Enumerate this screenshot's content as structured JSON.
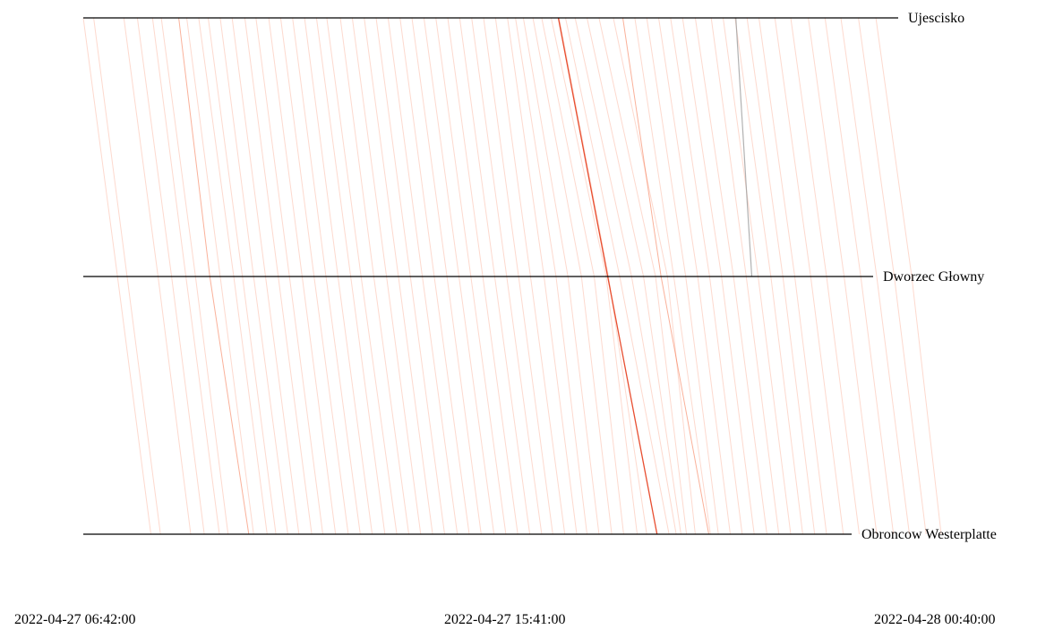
{
  "chart_data": {
    "type": "line",
    "title": "",
    "xlabel": "",
    "ylabel": "",
    "stops": [
      "Ujescisko",
      "Dworzec Głowny",
      "Obroncow Westerplatte"
    ],
    "x_tick_labels": [
      "2022-04-27 06:42:00",
      "2022-04-27 15:41:00",
      "2022-04-28 00:40:00"
    ],
    "x_range": [
      "2022-04-27 06:42",
      "2022-04-28 00:40"
    ],
    "grid": false,
    "legend": "none",
    "colors": {
      "trip": "#f4511e",
      "highlight": "#e63b1a",
      "gray": "#9e9e9e",
      "axis": "#000000"
    },
    "trips": [
      {
        "times": [
          "06:42",
          "07:25",
          "08:07"
        ],
        "style": "faint"
      },
      {
        "times": [
          "06:55",
          "07:37",
          "08:19"
        ],
        "style": "faint"
      },
      {
        "times": [
          "07:33",
          "08:16",
          "08:57"
        ],
        "style": "faint"
      },
      {
        "times": [
          "07:50",
          "08:33",
          "09:14"
        ],
        "style": "faint"
      },
      {
        "times": [
          "08:09",
          "08:51",
          "09:33"
        ],
        "style": "faint"
      },
      {
        "times": [
          "08:20",
          "09:03",
          "09:44"
        ],
        "style": "faint"
      },
      {
        "times": [
          "08:42",
          "09:21",
          "10:10"
        ],
        "style": "medium"
      },
      {
        "times": [
          "08:52",
          "09:34",
          "10:16"
        ],
        "style": "faint"
      },
      {
        "times": [
          "09:07",
          "09:51",
          "10:33"
        ],
        "style": "faint"
      },
      {
        "times": [
          "09:19",
          "10:02",
          "10:44"
        ],
        "style": "faint"
      },
      {
        "times": [
          "09:34",
          "10:16",
          "10:59"
        ],
        "style": "faint"
      },
      {
        "times": [
          "09:49",
          "10:31",
          "11:13"
        ],
        "style": "faint"
      },
      {
        "times": [
          "10:05",
          "10:47",
          "11:29"
        ],
        "style": "faint"
      },
      {
        "times": [
          "10:19",
          "11:01",
          "11:43"
        ],
        "style": "faint"
      },
      {
        "times": [
          "10:35",
          "11:17",
          "11:59"
        ],
        "style": "faint"
      },
      {
        "times": [
          "10:50",
          "11:32",
          "12:15"
        ],
        "style": "faint"
      },
      {
        "times": [
          "11:05",
          "11:47",
          "12:30"
        ],
        "style": "faint"
      },
      {
        "times": [
          "11:20",
          "12:02",
          "12:45"
        ],
        "style": "faint"
      },
      {
        "times": [
          "11:35",
          "12:18",
          "13:01"
        ],
        "style": "faint"
      },
      {
        "times": [
          "11:48",
          "12:31",
          "13:16"
        ],
        "style": "faint"
      },
      {
        "times": [
          "12:05",
          "12:47",
          "13:31"
        ],
        "style": "faint"
      },
      {
        "times": [
          "12:20",
          "13:03",
          "13:46"
        ],
        "style": "faint"
      },
      {
        "times": [
          "12:35",
          "13:18",
          "14:01"
        ],
        "style": "faint"
      },
      {
        "times": [
          "12:50",
          "13:33",
          "14:16"
        ],
        "style": "faint"
      },
      {
        "times": [
          "13:05",
          "13:48",
          "14:32"
        ],
        "style": "faint"
      },
      {
        "times": [
          "13:20",
          "14:03",
          "14:47"
        ],
        "style": "faint"
      },
      {
        "times": [
          "13:35",
          "14:19",
          "15:02"
        ],
        "style": "faint"
      },
      {
        "times": [
          "13:50",
          "14:34",
          "15:18"
        ],
        "style": "faint"
      },
      {
        "times": [
          "14:05",
          "14:49",
          "15:33"
        ],
        "style": "faint"
      },
      {
        "times": [
          "14:20",
          "15:04",
          "15:48"
        ],
        "style": "faint"
      },
      {
        "times": [
          "14:35",
          "15:19",
          "16:03"
        ],
        "style": "faint"
      },
      {
        "times": [
          "14:50",
          "15:34",
          "16:18"
        ],
        "style": "faint"
      },
      {
        "times": [
          "15:05",
          "15:49",
          "16:32"
        ],
        "style": "faint"
      },
      {
        "times": [
          "15:20",
          "16:04",
          "16:47"
        ],
        "style": "faint"
      },
      {
        "times": [
          "15:35",
          "16:21",
          "17:02"
        ],
        "style": "faint"
      },
      {
        "times": [
          "15:45",
          "16:36",
          "17:15"
        ],
        "style": "faint"
      },
      {
        "times": [
          "15:55",
          "16:51",
          "17:30"
        ],
        "style": "faint"
      },
      {
        "times": [
          "16:07",
          "17:08",
          "17:46"
        ],
        "style": "faint"
      },
      {
        "times": [
          "16:18",
          "17:24",
          "18:01"
        ],
        "style": "faint"
      },
      {
        "times": [
          "16:30",
          "17:39",
          "18:18"
        ],
        "style": "faint"
      },
      {
        "times": [
          "16:40",
          "17:42",
          "18:30"
        ],
        "style": "faint"
      },
      {
        "times": [
          "16:39",
          "17:41",
          "18:43"
        ],
        "style": "strong"
      },
      {
        "times": [
          "16:48",
          "17:56",
          "18:58"
        ],
        "style": "faint"
      },
      {
        "times": [
          "17:00",
          "18:11",
          "19:07"
        ],
        "style": "faint"
      },
      {
        "times": [
          "17:15",
          "18:26",
          "19:13"
        ],
        "style": "faint"
      },
      {
        "times": [
          "17:30",
          "18:41",
          "19:20"
        ],
        "style": "faint"
      },
      {
        "times": [
          "17:48",
          "18:56",
          "19:31"
        ],
        "style": "faint"
      },
      {
        "times": [
          "18:00",
          "18:48",
          "19:48"
        ],
        "style": "medium"
      },
      {
        "times": [
          "18:15",
          "19:04",
          "19:50"
        ],
        "style": "faint"
      },
      {
        "times": [
          "18:30",
          "19:19",
          "20:00"
        ],
        "style": "faint"
      },
      {
        "times": [
          "18:45",
          "19:34",
          "20:15"
        ],
        "style": "faint"
      },
      {
        "times": [
          "19:00",
          "19:49",
          "20:30"
        ],
        "style": "faint"
      },
      {
        "times": [
          "19:15",
          "20:04",
          "20:45"
        ],
        "style": "faint"
      },
      {
        "times": [
          "19:31",
          "20:19",
          "21:01"
        ],
        "style": "faint"
      },
      {
        "times": [
          "19:51",
          "20:35",
          "21:16"
        ],
        "style": "faint"
      },
      {
        "times": [
          "20:06",
          "20:50",
          "21:31"
        ],
        "style": "faint"
      },
      {
        "times": [
          "20:21",
          "21:06",
          "21:46"
        ],
        "style": "faint"
      },
      {
        "times": [
          "20:22",
          "20:42",
          null
        ],
        "style": "gray"
      },
      {
        "times": [
          "20:36",
          "21:21",
          "22:01"
        ],
        "style": "faint"
      },
      {
        "times": [
          "20:51",
          "21:36",
          "22:16"
        ],
        "style": "faint"
      },
      {
        "times": [
          "21:11",
          "21:56",
          "22:37"
        ],
        "style": "faint"
      },
      {
        "times": [
          "21:31",
          "22:16",
          "22:57"
        ],
        "style": "faint"
      },
      {
        "times": [
          "21:53",
          "22:38",
          "23:19"
        ],
        "style": "faint"
      },
      {
        "times": [
          "22:14",
          "22:59",
          "23:40"
        ],
        "style": "faint"
      },
      {
        "times": [
          "22:34",
          "23:19",
          "00:00"
        ],
        "style": "faint"
      },
      {
        "times": [
          "22:56",
          "23:41",
          "00:21"
        ],
        "style": "faint"
      },
      {
        "times": [
          "23:18",
          "00:03",
          "00:40"
        ],
        "style": "faint"
      }
    ]
  }
}
